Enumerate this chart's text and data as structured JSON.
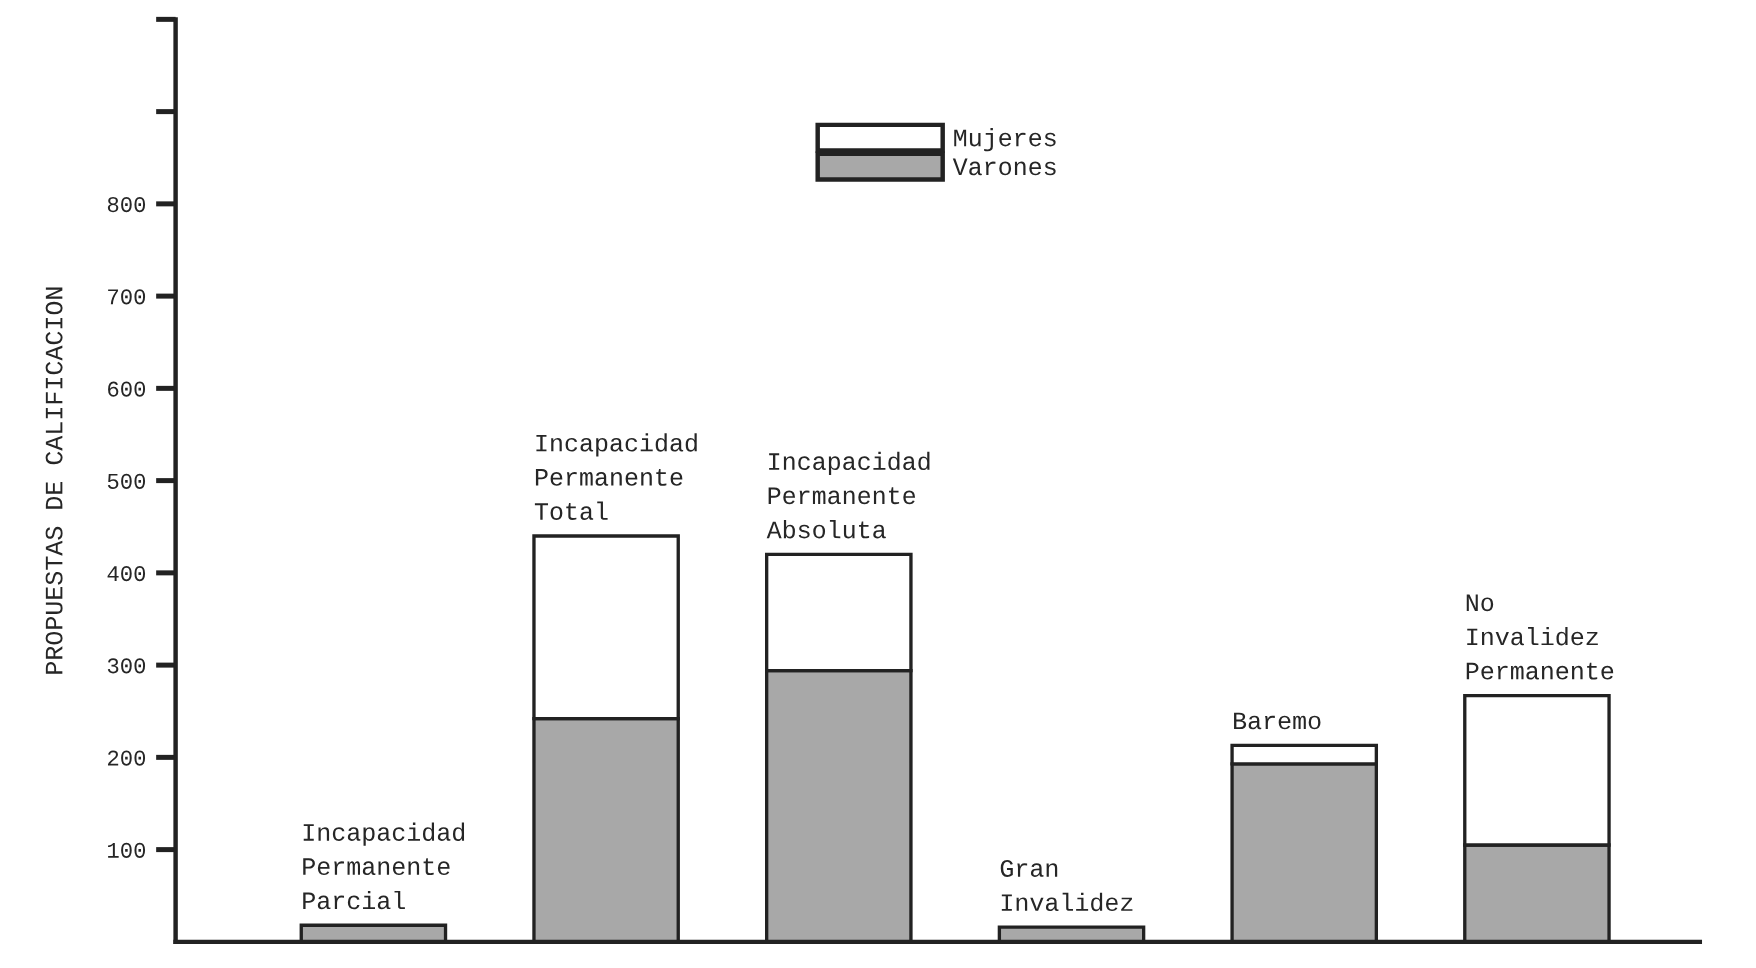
{
  "chart_data": {
    "type": "bar",
    "stacked": true,
    "ylabel": "PROPUESTAS DE CALIFICACION",
    "categories": [
      "Incapacidad\nPermanente\nParcial",
      "Incapacidad\nPermanente\nTotal",
      "Incapacidad\nPermanente\nAbsoluta",
      "Gran\nInvalidez",
      "Baremo",
      "No\nInvalidez\nPermanente"
    ],
    "series": [
      {
        "name": "Varones",
        "color": "#a8a8a8",
        "values": [
          18,
          242,
          294,
          16,
          193,
          105
        ]
      },
      {
        "name": "Mujeres",
        "color": "#ffffff",
        "values": [
          null,
          198,
          126,
          null,
          20,
          162
        ]
      }
    ],
    "ylim": [
      0,
      1000
    ],
    "yticks": [
      {
        "value": 100,
        "label": "100"
      },
      {
        "value": 200,
        "label": "200"
      },
      {
        "value": 300,
        "label": "300"
      },
      {
        "value": 400,
        "label": "400"
      },
      {
        "value": 500,
        "label": "500"
      },
      {
        "value": 600,
        "label": "600"
      },
      {
        "value": 700,
        "label": "700"
      },
      {
        "value": 800,
        "label": "800"
      },
      {
        "value": 900,
        "label": null
      },
      {
        "value": 1000,
        "label": null
      }
    ],
    "tick_labels": "y",
    "legend": "top",
    "grid": false
  }
}
